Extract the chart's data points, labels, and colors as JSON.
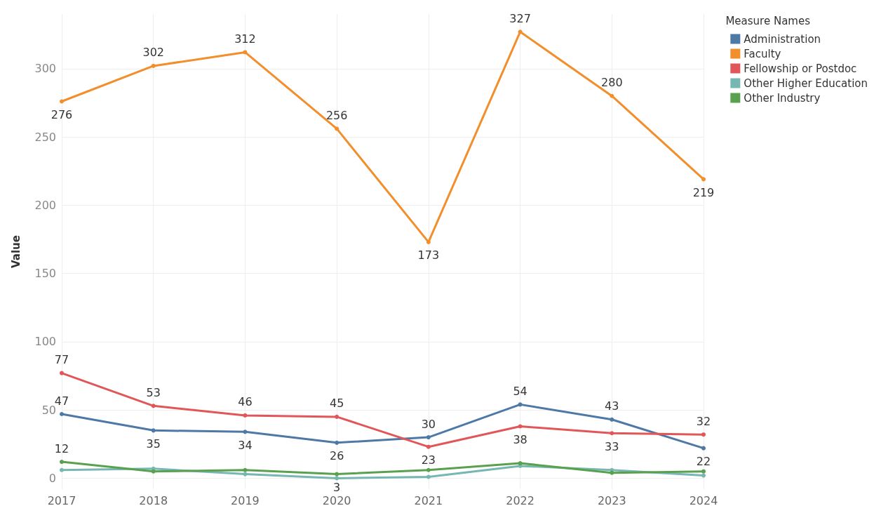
{
  "chart_data": {
    "type": "line",
    "ylabel": "Value",
    "legend_title": "Measure Names",
    "categories": [
      "2017",
      "2018",
      "2019",
      "2020",
      "2021",
      "2022",
      "2023",
      "2024"
    ],
    "series": [
      {
        "name": "Administration",
        "color": "#4e79a7",
        "values": [
          47,
          35,
          34,
          26,
          30,
          54,
          43,
          22
        ],
        "value_labels": [
          "47",
          "35",
          "34",
          "26",
          "30",
          "54",
          "43",
          "22"
        ]
      },
      {
        "name": "Faculty",
        "color": "#f28e2b",
        "values": [
          276,
          302,
          312,
          256,
          173,
          327,
          280,
          219
        ],
        "value_labels": [
          "276",
          "302",
          "312",
          "256",
          "173",
          "327",
          "280",
          "219"
        ]
      },
      {
        "name": "Fellowship or Postdoc",
        "color": "#e15759",
        "values": [
          77,
          53,
          46,
          45,
          23,
          38,
          33,
          32
        ],
        "value_labels": [
          "77",
          "53",
          "46",
          "45",
          "23",
          "38",
          "33",
          "32"
        ]
      },
      {
        "name": "Other Higher Education",
        "color": "#76b7b2",
        "values": [
          6,
          7,
          3,
          0,
          1,
          9,
          6,
          2
        ],
        "value_labels": [
          null,
          null,
          null,
          null,
          null,
          null,
          null,
          null
        ]
      },
      {
        "name": "Other Industry",
        "color": "#59a14f",
        "values": [
          12,
          5,
          6,
          3,
          6,
          11,
          4,
          5
        ],
        "value_labels": [
          "12",
          null,
          null,
          "3",
          null,
          null,
          null,
          null
        ]
      }
    ],
    "ylim": [
      -8,
      340
    ],
    "yticks": [
      0,
      50,
      100,
      150,
      200,
      250,
      300
    ],
    "grid": true,
    "legend": "top right",
    "marker": "circle",
    "line_style": "solid"
  }
}
